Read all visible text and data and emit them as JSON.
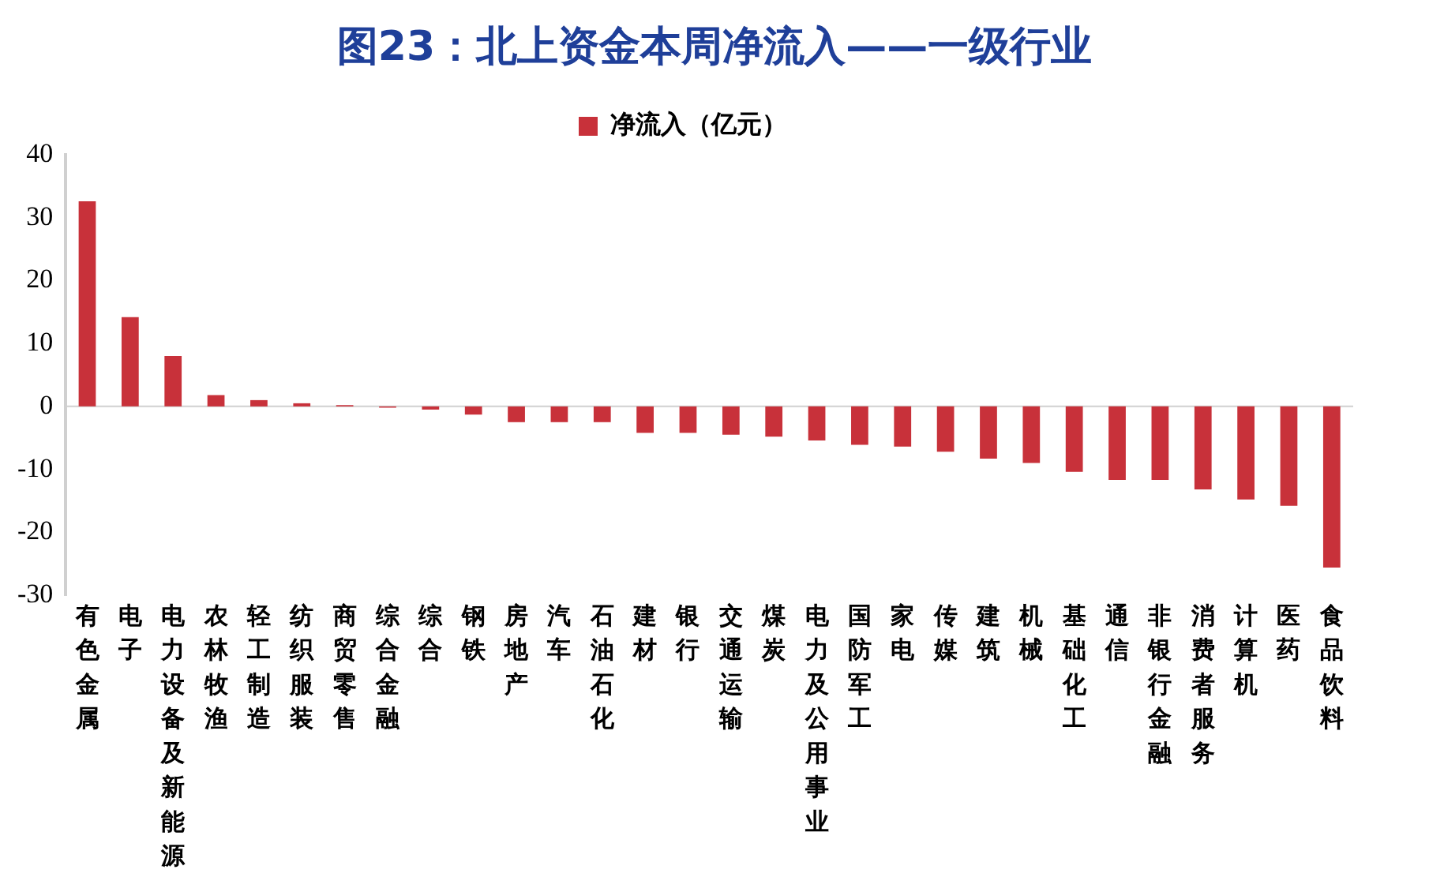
{
  "chart_data": {
    "type": "bar",
    "title": "图23：北上资金本周净流入——一级行业",
    "categories": [
      "有色金属",
      "电子",
      "电力设备及新能源",
      "农林牧渔",
      "轻工制造",
      "纺织服装",
      "商贸零售",
      "综合金融",
      "综合",
      "钢铁",
      "房地产",
      "汽车",
      "石油石化",
      "建材",
      "银行",
      "交通运输",
      "煤炭",
      "电力及公用事业",
      "国防军工",
      "家电",
      "传媒",
      "建筑",
      "机械",
      "基础化工",
      "通信",
      "非银行金融",
      "消费者服务",
      "计算机",
      "医药",
      "食品饮料"
    ],
    "series": [
      {
        "name": "净流入（亿元）",
        "color": "#c8313a",
        "values": [
          32.6,
          14.2,
          8.0,
          1.8,
          1.0,
          0.5,
          0.2,
          -0.2,
          -0.5,
          -1.3,
          -2.5,
          -2.5,
          -2.5,
          -4.2,
          -4.2,
          -4.5,
          -4.8,
          -5.4,
          -6.1,
          -6.4,
          -7.2,
          -8.3,
          -9.0,
          -10.4,
          -11.7,
          -11.7,
          -13.2,
          -14.8,
          -15.8,
          -25.6
        ]
      }
    ],
    "ref_lines": [
      {
        "axis": "y",
        "value": 0,
        "color": "#d0d0d0"
      }
    ],
    "ylim": [
      -30,
      40
    ],
    "yticks": [
      -30,
      -20,
      -10,
      0,
      10,
      20,
      30,
      40
    ],
    "grid": false,
    "legend": "top"
  }
}
